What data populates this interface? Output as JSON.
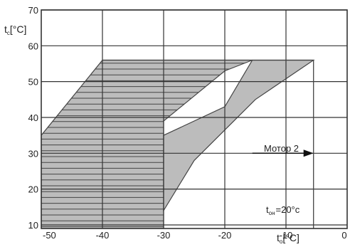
{
  "chart_data": {
    "type": "area",
    "x_axis": {
      "ticks": [
        "-50",
        "-40",
        "-30",
        "-20",
        "-10",
        "0"
      ],
      "min": -50,
      "max": 0
    },
    "y_axis": {
      "ticks": [
        "10",
        "20",
        "30",
        "40",
        "50",
        "60",
        "70"
      ],
      "min": 9,
      "max": 70
    },
    "xlabel": {
      "main": "t",
      "sub": "o",
      "unit": "[°C]"
    },
    "ylabel": {
      "main": "t",
      "sub": "c",
      "unit": "[°C]"
    },
    "grid": true,
    "colors": {
      "region_fill": "#bcbcbc",
      "hatch": "#444444",
      "grid": "#333333",
      "outline": "#444444"
    },
    "regions": [
      {
        "id": "hatched-region",
        "fill": "hatched",
        "polygon": [
          [
            -50,
            35
          ],
          [
            -40,
            56
          ],
          [
            -15.5,
            56
          ],
          [
            -20,
            53
          ],
          [
            -25,
            46
          ],
          [
            -30,
            39
          ],
          [
            -30,
            9
          ],
          [
            -50,
            9
          ]
        ]
      },
      {
        "id": "gray-region",
        "fill": "solid",
        "polygon": [
          [
            -30,
            35
          ],
          [
            -20,
            43
          ],
          [
            -15.5,
            56
          ],
          [
            -5.5,
            56
          ],
          [
            -15,
            45
          ],
          [
            -25,
            28
          ],
          [
            -30,
            14
          ]
        ]
      }
    ],
    "boundary_line": {
      "points": [
        [
          -40,
          56
        ],
        [
          -5.5,
          56
        ],
        [
          -5.5,
          9
        ]
      ]
    },
    "annotations": {
      "motor_label": "Мотор 2",
      "motor_arrow": {
        "from": [
          -15.5,
          30
        ],
        "to": [
          -5.5,
          30
        ]
      },
      "toh_main": "t",
      "toh_sub": "он",
      "toh_value": "=20°c"
    }
  }
}
